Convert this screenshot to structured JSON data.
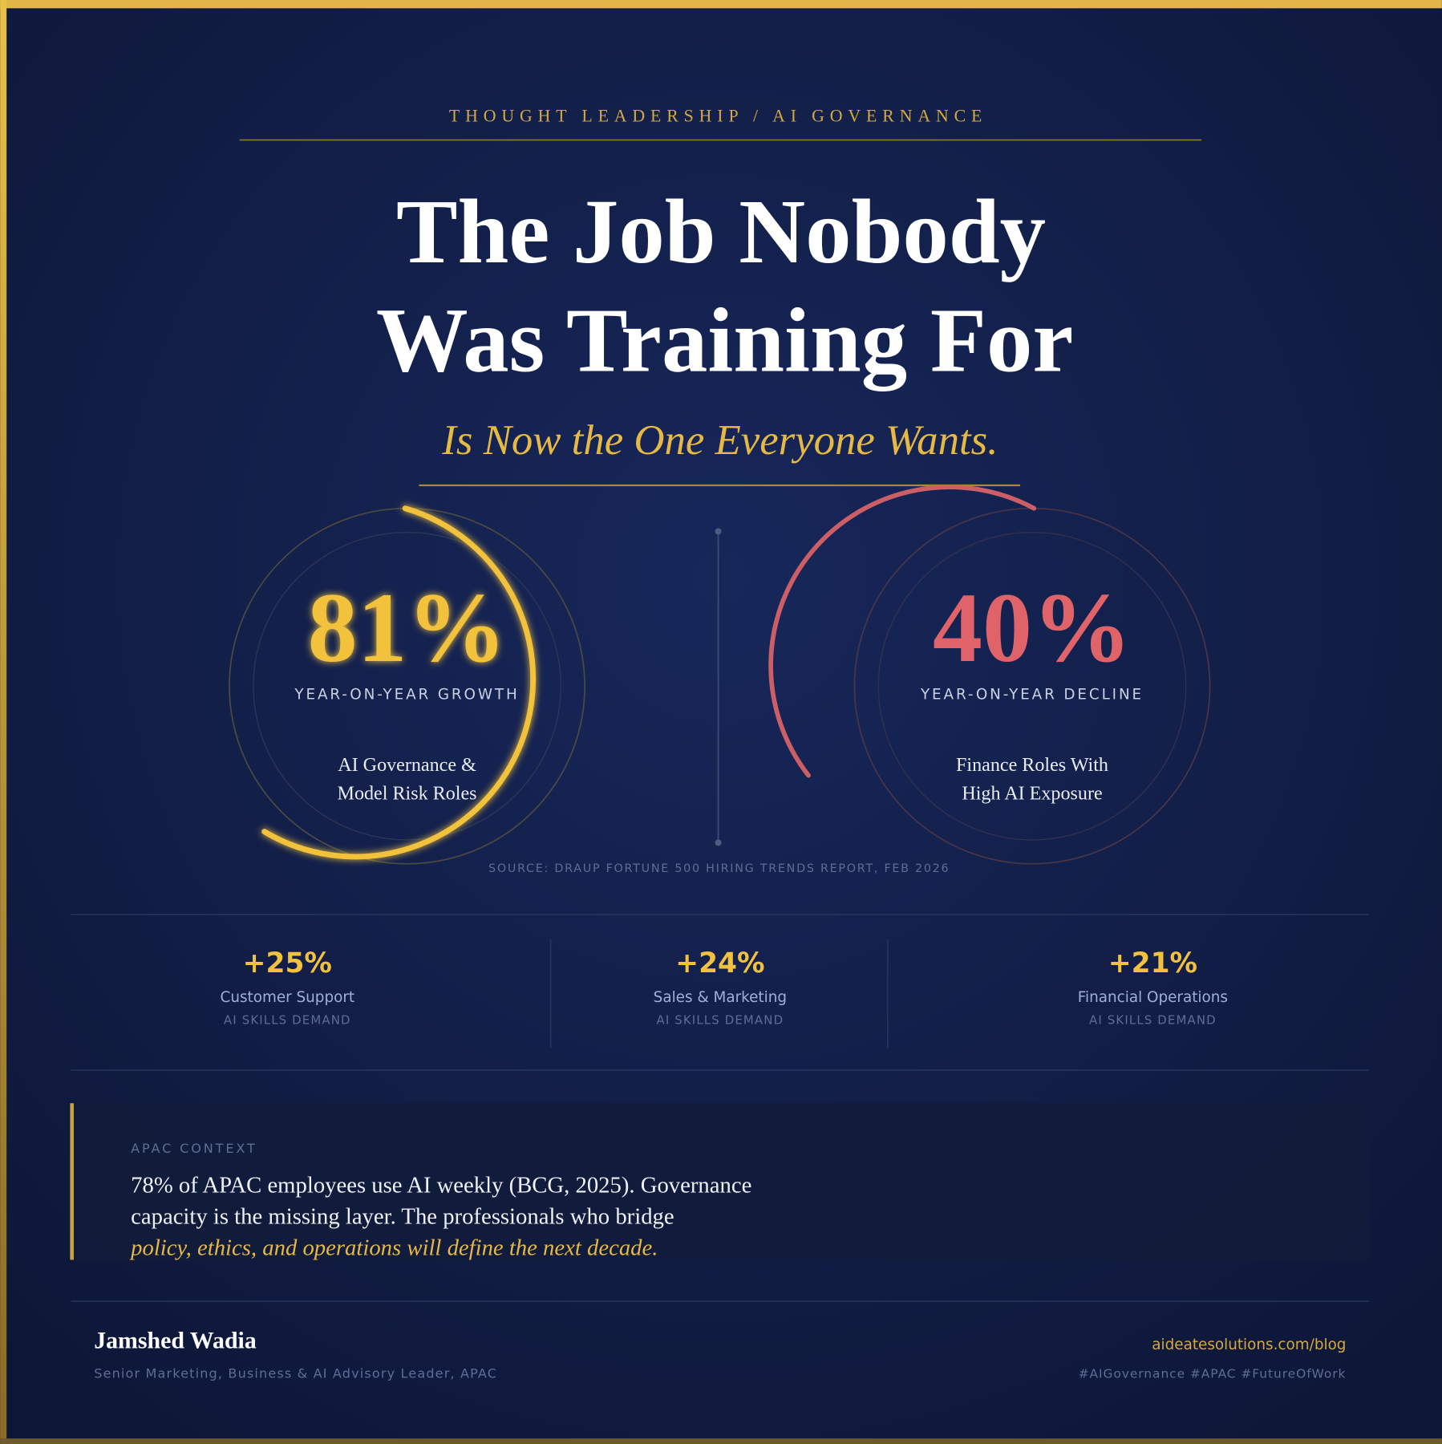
{
  "header": {
    "eyebrow": "THOUGHT LEADERSHIP / AI GOVERNANCE",
    "title": [
      "The Job Nobody",
      "Was Training For"
    ],
    "subtitle": "Is Now the One Everyone Wants."
  },
  "highlights": [
    {
      "value": "81%",
      "label": "YEAR-ON-YEAR GROWTH",
      "description": [
        "AI Governance &",
        "Model Risk Roles"
      ]
    },
    {
      "value": "40%",
      "label": "YEAR-ON-YEAR DECLINE",
      "description": [
        "Finance Roles With",
        "High AI Exposure"
      ]
    }
  ],
  "source": "SOURCE: DRAUP FORTUNE 500 HIRING TRENDS REPORT, FEB 2026",
  "stats": [
    {
      "value": "+25%",
      "label": "Customer Support",
      "sublabel": "AI SKILLS DEMAND"
    },
    {
      "value": "+24%",
      "label": "Sales & Marketing",
      "sublabel": "AI SKILLS DEMAND"
    },
    {
      "value": "+21%",
      "label": "Financial Operations",
      "sublabel": "AI SKILLS DEMAND"
    }
  ],
  "context": {
    "label": "APAC CONTEXT",
    "lines": [
      "78% of APAC employees use AI weekly (BCG, 2025). Governance",
      "capacity is the missing layer. The professionals who bridge"
    ],
    "emphasis": "policy, ethics, and operations will define the next decade."
  },
  "footer": {
    "name": "Jamshed Wadia",
    "role": "Senior Marketing, Business & AI Advisory Leader, APAC",
    "url": "aideatesolutions.com/blog",
    "tags": "#AIGovernance #APAC #FutureOfWork"
  }
}
